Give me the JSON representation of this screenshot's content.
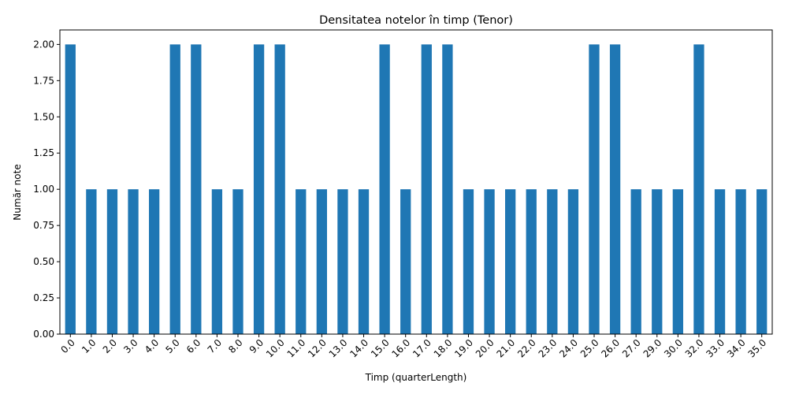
{
  "chart_data": {
    "type": "bar",
    "title": "Densitatea notelor în timp (Tenor)",
    "xlabel": "Timp (quarterLength)",
    "ylabel": "Număr note",
    "categories": [
      "0.0",
      "1.0",
      "2.0",
      "3.0",
      "4.0",
      "5.0",
      "6.0",
      "7.0",
      "8.0",
      "9.0",
      "10.0",
      "11.0",
      "12.0",
      "13.0",
      "14.0",
      "15.0",
      "16.0",
      "17.0",
      "18.0",
      "19.0",
      "20.0",
      "21.0",
      "22.0",
      "23.0",
      "24.0",
      "25.0",
      "26.0",
      "27.0",
      "29.0",
      "30.0",
      "32.0",
      "33.0",
      "34.0",
      "35.0"
    ],
    "values": [
      2,
      1,
      1,
      1,
      1,
      2,
      2,
      1,
      1,
      2,
      2,
      1,
      1,
      1,
      1,
      2,
      1,
      2,
      2,
      1,
      1,
      1,
      1,
      1,
      1,
      2,
      2,
      1,
      1,
      1,
      2,
      1,
      1,
      1
    ],
    "ylim": [
      0,
      2.1
    ],
    "yticks": [
      "0.00",
      "0.25",
      "0.50",
      "0.75",
      "1.00",
      "1.25",
      "1.50",
      "1.75",
      "2.00"
    ],
    "grid": false,
    "bar_color": "#1f77b4",
    "x_tick_rotation": 45
  }
}
